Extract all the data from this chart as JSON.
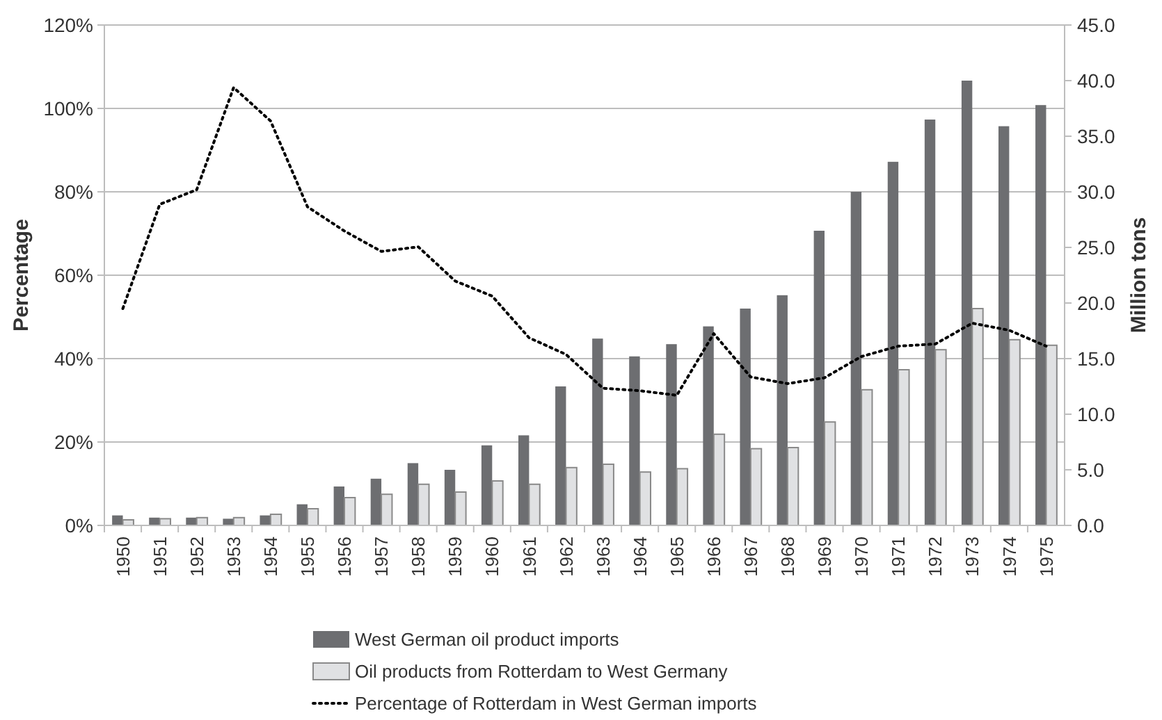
{
  "chart_data": {
    "type": "bar",
    "ylabel": "Percentage",
    "y2label": "Million tons",
    "categories": [
      "1950",
      "1951",
      "1952",
      "1953",
      "1954",
      "1955",
      "1956",
      "1957",
      "1958",
      "1959",
      "1960",
      "1961",
      "1962",
      "1963",
      "1964",
      "1965",
      "1966",
      "1967",
      "1968",
      "1969",
      "1970",
      "1971",
      "1972",
      "1973",
      "1974",
      "1975"
    ],
    "series": [
      {
        "name": "West German oil product imports",
        "color": "#6d6e71",
        "axis": "y2",
        "values": [
          0.9,
          0.7,
          0.7,
          0.6,
          0.9,
          1.9,
          3.5,
          4.2,
          5.6,
          5.0,
          7.2,
          8.1,
          12.5,
          16.8,
          15.2,
          16.3,
          17.9,
          19.5,
          20.7,
          26.5,
          30.0,
          32.7,
          36.5,
          40.0,
          35.9,
          37.8
        ]
      },
      {
        "name": "Oil products from Rotterdam to West Germany",
        "color": "#e0e1e3",
        "axis": "y2",
        "values": [
          0.5,
          0.6,
          0.7,
          0.7,
          1.0,
          1.5,
          2.5,
          2.8,
          3.7,
          3.0,
          4.0,
          3.7,
          5.2,
          5.5,
          4.8,
          5.1,
          8.2,
          6.9,
          7.0,
          9.3,
          12.2,
          14.0,
          15.8,
          19.5,
          16.7,
          16.2
        ]
      },
      {
        "name": "Percentage of Rotterdam in West German imports",
        "type": "line",
        "color": "#000000",
        "axis": "y",
        "line_style": "dotted",
        "values": [
          52,
          77,
          80.5,
          105,
          97,
          76.4,
          70.6,
          65.7,
          66.8,
          58.6,
          55,
          45,
          41,
          32.9,
          32.3,
          31.2,
          46,
          35.6,
          34,
          35.4,
          40.5,
          43,
          43.5,
          48.5,
          46.8,
          43
        ]
      }
    ],
    "ylim": [
      0,
      120
    ],
    "yticks": [
      {
        "value": 0,
        "label": "0%"
      },
      {
        "value": 20,
        "label": "20%"
      },
      {
        "value": 40,
        "label": "40%"
      },
      {
        "value": 60,
        "label": "60%"
      },
      {
        "value": 80,
        "label": "80%"
      },
      {
        "value": 100,
        "label": "100%"
      },
      {
        "value": 120,
        "label": "120%"
      }
    ],
    "y2lim": [
      0,
      45
    ],
    "y2ticks": [
      {
        "value": 0,
        "label": "0.0"
      },
      {
        "value": 5,
        "label": "5.0"
      },
      {
        "value": 10,
        "label": "10.0"
      },
      {
        "value": 15,
        "label": "15.0"
      },
      {
        "value": 20,
        "label": "20.0"
      },
      {
        "value": 25,
        "label": "25.0"
      },
      {
        "value": 30,
        "label": "30.0"
      },
      {
        "value": 35,
        "label": "35.0"
      },
      {
        "value": 40,
        "label": "40.0"
      },
      {
        "value": 45,
        "label": "45.0"
      }
    ],
    "grid": "y",
    "legend": "bottom"
  }
}
